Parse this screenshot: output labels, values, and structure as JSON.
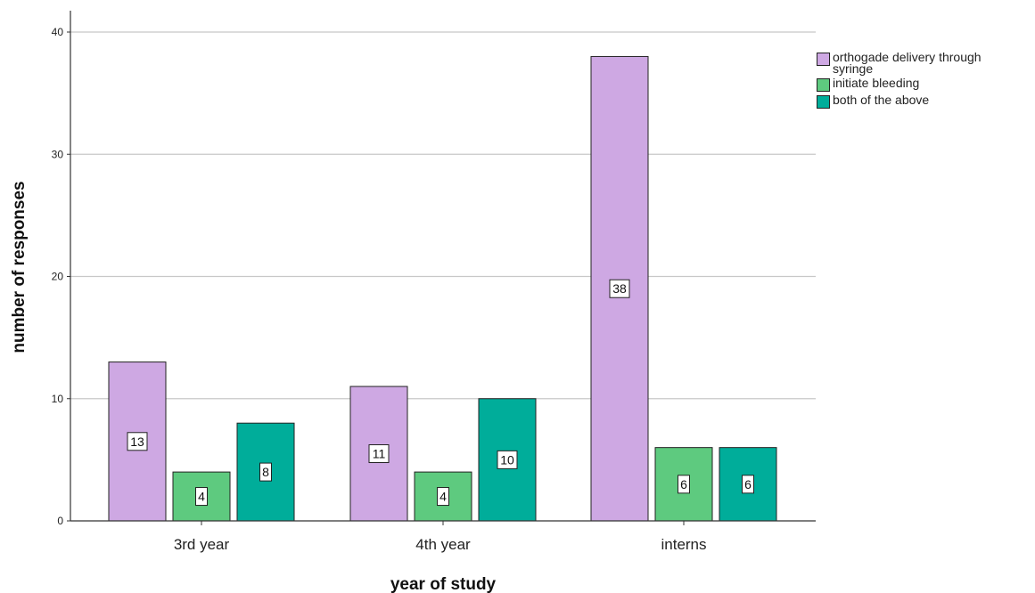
{
  "chart_data": {
    "type": "bar",
    "categories": [
      "3rd year",
      "4th year",
      "interns"
    ],
    "series": [
      {
        "name": "orthogade delivery through syringe",
        "values": [
          13,
          11,
          38
        ],
        "color": "#CEA8E3"
      },
      {
        "name": "initiate bleeding",
        "values": [
          4,
          4,
          6
        ],
        "color": "#5ECA7F"
      },
      {
        "name": "both of the above",
        "values": [
          8,
          10,
          6
        ],
        "color": "#00AD9A"
      }
    ],
    "xlabel": "year of study",
    "ylabel": "number of responses",
    "ylim": [
      0,
      40
    ],
    "yticks": [
      0,
      10,
      20,
      30,
      40
    ],
    "grid": true,
    "legend_position": "right",
    "data_labels": true
  }
}
